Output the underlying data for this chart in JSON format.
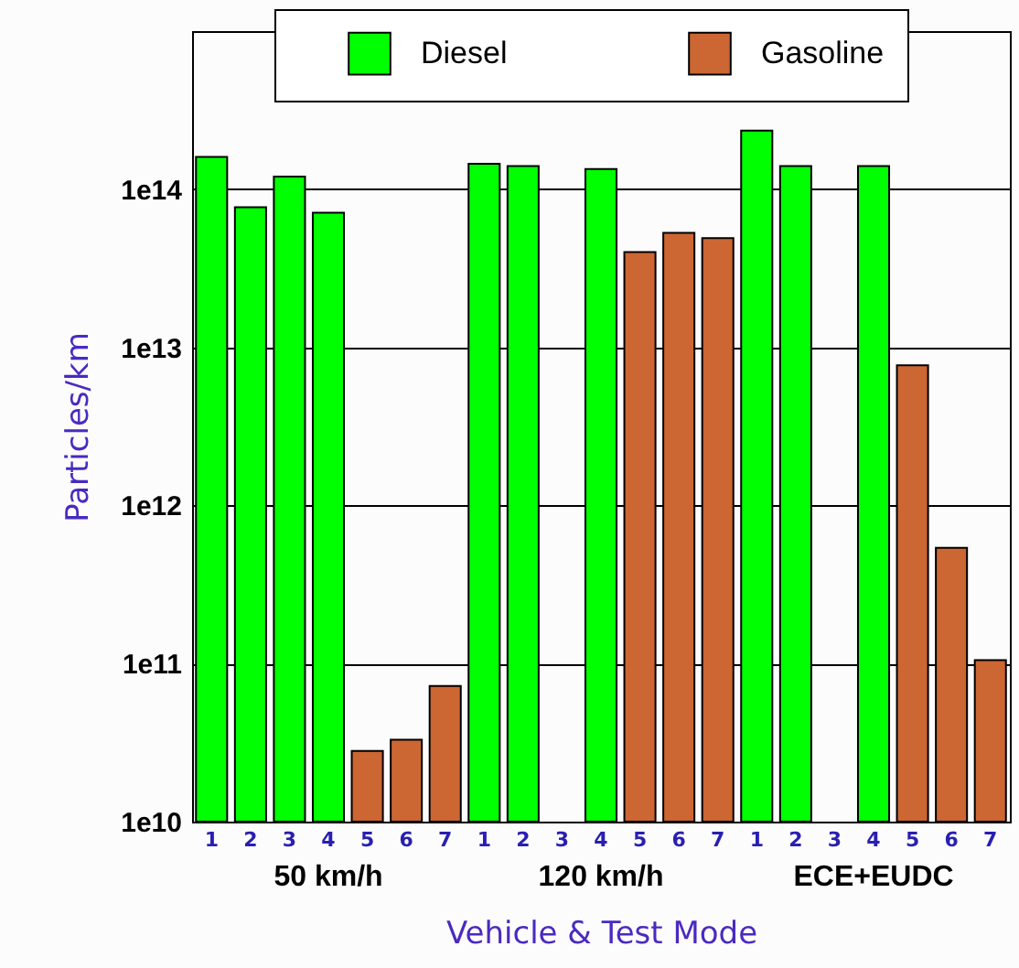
{
  "chart_data": {
    "type": "bar",
    "xlabel": "Vehicle & Test Mode",
    "ylabel": "Particles/km",
    "categories": [
      "1",
      "2",
      "3",
      "4",
      "5",
      "6",
      "7",
      "1",
      "2",
      "3",
      "4",
      "5",
      "6",
      "7",
      "1",
      "2",
      "3",
      "4",
      "5",
      "6",
      "7"
    ],
    "series": [
      {
        "name": "Diesel",
        "color": "#00ff00",
        "values": [
          160000000000000.0,
          77000000000000.0,
          120000000000000.0,
          71000000000000.0,
          null,
          null,
          null,
          145000000000000.0,
          140000000000000.0,
          null,
          134000000000000.0,
          null,
          null,
          null,
          235000000000000.0,
          140000000000000.0,
          null,
          140000000000000.0,
          null,
          null,
          null
        ]
      },
      {
        "name": "Gasoline",
        "color": "#cc6633",
        "values": [
          null,
          null,
          null,
          null,
          28000000000.0,
          33000000000.0,
          72000000000.0,
          null,
          null,
          null,
          null,
          40000000000000.0,
          53000000000000.0,
          49000000000000.0,
          null,
          null,
          null,
          null,
          7700000000000.0,
          540000000000.0,
          105000000000.0
        ]
      }
    ],
    "log": true,
    "ylim": [
      10000000000.0,
      1000000000000000.0
    ],
    "yticks": [
      {
        "value": 10000000000.0,
        "label": "1e10"
      },
      {
        "value": 100000000000.0,
        "label": "1e11"
      },
      {
        "value": 1000000000000.0,
        "label": "1e12"
      },
      {
        "value": 10000000000000.0,
        "label": "1e13"
      },
      {
        "value": 100000000000000.0,
        "label": "1e14"
      }
    ],
    "grid": "y",
    "legend": "top",
    "annotations": [
      "50 km/h",
      "120 km/h",
      "ECE+EUDC"
    ]
  }
}
